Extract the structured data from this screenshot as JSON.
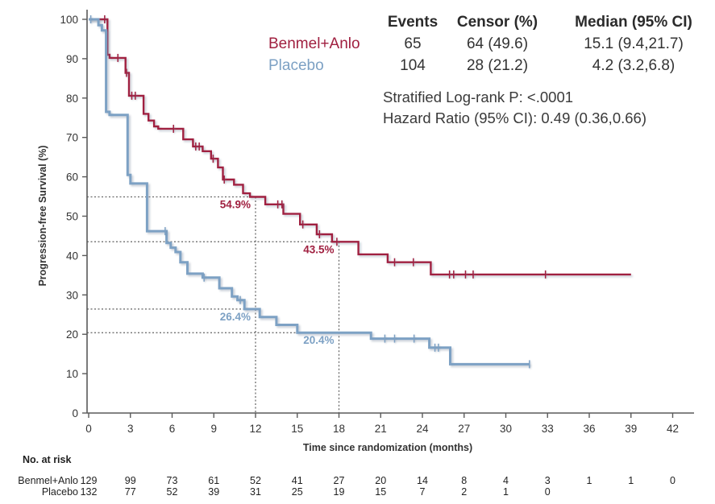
{
  "stats_table": {
    "headers": [
      "Events",
      "Censor (%)",
      "Median (95% CI)"
    ],
    "rows": [
      {
        "label": "Benmel+Anlo",
        "events": "65",
        "censor": "64 (49.6)",
        "median": "15.1 (9.4,21.7)"
      },
      {
        "label": "Placebo",
        "events": "104",
        "censor": "28 (21.2)",
        "median": "4.2 (3.2,6.8)"
      }
    ],
    "logrank": "Stratified Log-rank P: <.0001",
    "hazard": "Hazard Ratio (95% CI): 0.49 (0.36,0.66)"
  },
  "chart_data": {
    "type": "line",
    "subtype": "kaplan-meier-step",
    "title": "",
    "xlabel": "Time since randomization (months)",
    "ylabel": "Progression-free Survival (%)",
    "xlim": [
      0,
      42
    ],
    "ylim": [
      0,
      100
    ],
    "xticks": [
      0,
      3,
      6,
      9,
      12,
      15,
      18,
      21,
      24,
      27,
      30,
      33,
      36,
      39,
      42
    ],
    "yticks": [
      0,
      10,
      20,
      30,
      40,
      50,
      60,
      70,
      80,
      90,
      100
    ],
    "grid": false,
    "series": [
      {
        "name": "Benmel+Anlo",
        "color": "#A02040",
        "line_width": 2.4,
        "steps": [
          [
            0,
            100
          ],
          [
            1.35,
            91
          ],
          [
            1.5,
            90.2
          ],
          [
            2.65,
            86.4
          ],
          [
            2.9,
            80.6
          ],
          [
            3.95,
            76
          ],
          [
            4.3,
            74.3
          ],
          [
            4.7,
            72.8
          ],
          [
            5.0,
            72.2
          ],
          [
            6.8,
            69.5
          ],
          [
            7.5,
            67.7
          ],
          [
            8.2,
            66.5
          ],
          [
            8.8,
            64.6
          ],
          [
            9.3,
            62.4
          ],
          [
            9.65,
            59.3
          ],
          [
            10.45,
            58
          ],
          [
            11.1,
            55.8
          ],
          [
            11.6,
            54.9
          ],
          [
            12.7,
            53
          ],
          [
            14.0,
            50.6
          ],
          [
            15.2,
            47.9
          ],
          [
            16.4,
            45.4
          ],
          [
            17.5,
            43.5
          ],
          [
            19.4,
            40.3
          ],
          [
            21.5,
            38.3
          ],
          [
            24.6,
            35.2
          ],
          [
            39,
            35.2
          ]
        ],
        "censors": [
          [
            1.15,
            100
          ],
          [
            2.1,
            90.2
          ],
          [
            2.72,
            86.4
          ],
          [
            3.1,
            80.6
          ],
          [
            3.35,
            80.6
          ],
          [
            6.1,
            72.2
          ],
          [
            7.7,
            67.7
          ],
          [
            7.95,
            67.7
          ],
          [
            8.95,
            64.6
          ],
          [
            9.75,
            59.3
          ],
          [
            13.6,
            53
          ],
          [
            13.9,
            53
          ],
          [
            15.4,
            47.9
          ],
          [
            16.6,
            45.4
          ],
          [
            17.85,
            43.5
          ],
          [
            22.0,
            38.3
          ],
          [
            23.35,
            38.3
          ],
          [
            25.95,
            35.2
          ],
          [
            26.25,
            35.2
          ],
          [
            27.1,
            35.2
          ],
          [
            27.65,
            35.2
          ],
          [
            32.85,
            35.2
          ]
        ]
      },
      {
        "name": "Placebo",
        "color": "#7DA1C4",
        "line_width": 3,
        "steps": [
          [
            0,
            100
          ],
          [
            0.7,
            98.5
          ],
          [
            0.95,
            97.2
          ],
          [
            1.25,
            76.5
          ],
          [
            1.5,
            75.7
          ],
          [
            2.8,
            60.5
          ],
          [
            3.0,
            58.3
          ],
          [
            4.2,
            46.2
          ],
          [
            5.6,
            43.2
          ],
          [
            5.9,
            42
          ],
          [
            6.25,
            40.9
          ],
          [
            6.6,
            38.3
          ],
          [
            7.1,
            35.4
          ],
          [
            8.2,
            34.4
          ],
          [
            9.4,
            31.7
          ],
          [
            10.3,
            29.6
          ],
          [
            10.7,
            28.7
          ],
          [
            11.2,
            26.4
          ],
          [
            12.3,
            24.4
          ],
          [
            13.5,
            22.4
          ],
          [
            15.0,
            20.4
          ],
          [
            20.3,
            18.9
          ],
          [
            24.5,
            16.6
          ],
          [
            26.0,
            12.4
          ],
          [
            31.7,
            12.4
          ]
        ],
        "censors": [
          [
            0.15,
            100
          ],
          [
            5.5,
            46.2
          ],
          [
            8.3,
            34.4
          ],
          [
            10.9,
            28.7
          ],
          [
            21.3,
            18.9
          ],
          [
            22.0,
            18.9
          ],
          [
            23.4,
            18.9
          ],
          [
            24.9,
            16.6
          ],
          [
            25.15,
            16.6
          ],
          [
            31.7,
            12.4
          ]
        ]
      }
    ],
    "annotations": [
      {
        "text": "54.9%",
        "month": 12,
        "percent": 54.9,
        "series": "Benmel+Anlo"
      },
      {
        "text": "43.5%",
        "month": 18,
        "percent": 43.5,
        "series": "Benmel+Anlo"
      },
      {
        "text": "26.4%",
        "month": 12,
        "percent": 26.4,
        "series": "Placebo"
      },
      {
        "text": "20.4%",
        "month": 18,
        "percent": 20.4,
        "series": "Placebo"
      }
    ],
    "reference_lines": {
      "horizontal": [
        {
          "percent": 54.9,
          "to_month": 12
        },
        {
          "percent": 43.5,
          "to_month": 18
        },
        {
          "percent": 26.4,
          "to_month": 12
        },
        {
          "percent": 20.4,
          "to_month": 18
        }
      ],
      "vertical": [
        {
          "month": 12,
          "to_percent": 54.9
        },
        {
          "month": 18,
          "to_percent": 43.5
        }
      ]
    }
  },
  "at_risk": {
    "title": "No. at risk",
    "times": [
      0,
      3,
      6,
      9,
      12,
      15,
      18,
      21,
      24,
      27,
      30,
      33,
      36,
      39,
      42
    ],
    "rows": [
      {
        "label": "Benmel+Anlo",
        "counts": [
          "129",
          "99",
          "73",
          "61",
          "52",
          "41",
          "27",
          "20",
          "14",
          "8",
          "4",
          "3",
          "1",
          "1",
          "0"
        ]
      },
      {
        "label": "Placebo",
        "counts": [
          "132",
          "77",
          "52",
          "39",
          "31",
          "25",
          "19",
          "15",
          "7",
          "2",
          "1",
          "0"
        ]
      }
    ]
  },
  "colors": {
    "benmel_anlo": "#A02040",
    "placebo": "#7DA1C4",
    "axis": "#5a5a5a",
    "text": "#333333",
    "reference_dots": "#606060"
  }
}
